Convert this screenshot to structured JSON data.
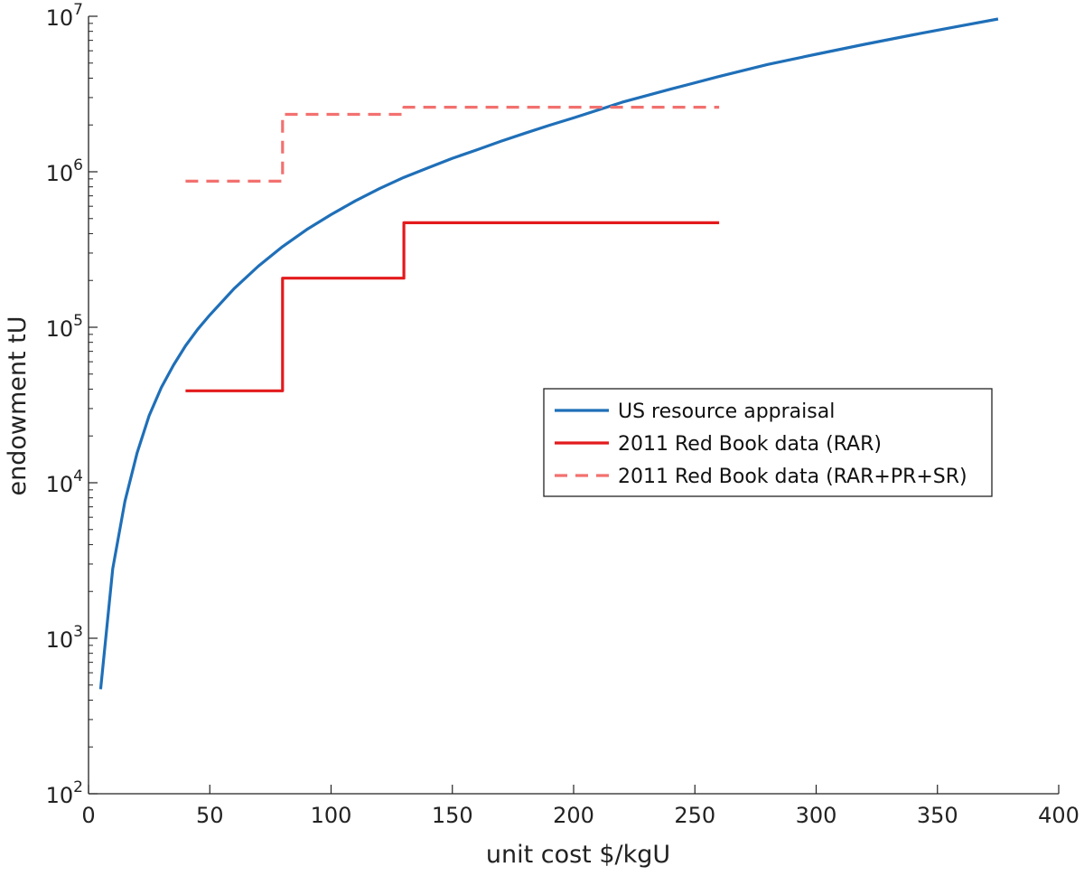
{
  "chart_data": {
    "type": "line",
    "xlabel": "unit cost $/kgU",
    "ylabel": "endowment tU",
    "xlim": [
      0,
      400
    ],
    "ylim": [
      100,
      10000000
    ],
    "yscale": "log",
    "xticks": [
      0,
      50,
      100,
      150,
      200,
      250,
      300,
      350,
      400
    ],
    "yticks": [
      {
        "value": 100,
        "base": "10",
        "exp": "2"
      },
      {
        "value": 1000,
        "base": "10",
        "exp": "3"
      },
      {
        "value": 10000,
        "base": "10",
        "exp": "4"
      },
      {
        "value": 100000,
        "base": "10",
        "exp": "5"
      },
      {
        "value": 1000000,
        "base": "10",
        "exp": "6"
      },
      {
        "value": 10000000,
        "base": "10",
        "exp": "7"
      }
    ],
    "grid": false,
    "legend_position": "center-right",
    "series": [
      {
        "name": "US resource appraisal",
        "style": "solid",
        "color": "#1f6fb8",
        "x": [
          5,
          10,
          15,
          20,
          25,
          30,
          35,
          40,
          45,
          50,
          60,
          70,
          80,
          90,
          100,
          110,
          120,
          130,
          140,
          150,
          160,
          170,
          180,
          190,
          200,
          220,
          240,
          260,
          280,
          300,
          320,
          340,
          360,
          375
        ],
        "y": [
          470,
          2800,
          7600,
          15500,
          27000,
          41000,
          57000,
          76000,
          97000,
          120000,
          177000,
          247000,
          330000,
          425000,
          530000,
          650000,
          780000,
          920000,
          1060000,
          1220000,
          1380000,
          1570000,
          1770000,
          1990000,
          2220000,
          2800000,
          3400000,
          4100000,
          4900000,
          5700000,
          6600000,
          7600000,
          8700000,
          9600000
        ]
      },
      {
        "name": "2011 Red Book data (RAR)",
        "style": "solid",
        "color": "#e31a1c",
        "x": [
          40,
          80,
          80,
          130,
          130,
          260
        ],
        "y": [
          39000,
          39000,
          207000,
          207000,
          470000,
          470000
        ]
      },
      {
        "name": "2011 Red Book data (RAR+PR+SR)",
        "style": "dashed",
        "color": "#f2716f",
        "x": [
          40,
          80,
          80,
          130,
          130,
          260
        ],
        "y": [
          870000,
          870000,
          2340000,
          2340000,
          2600000,
          2600000
        ]
      }
    ]
  }
}
